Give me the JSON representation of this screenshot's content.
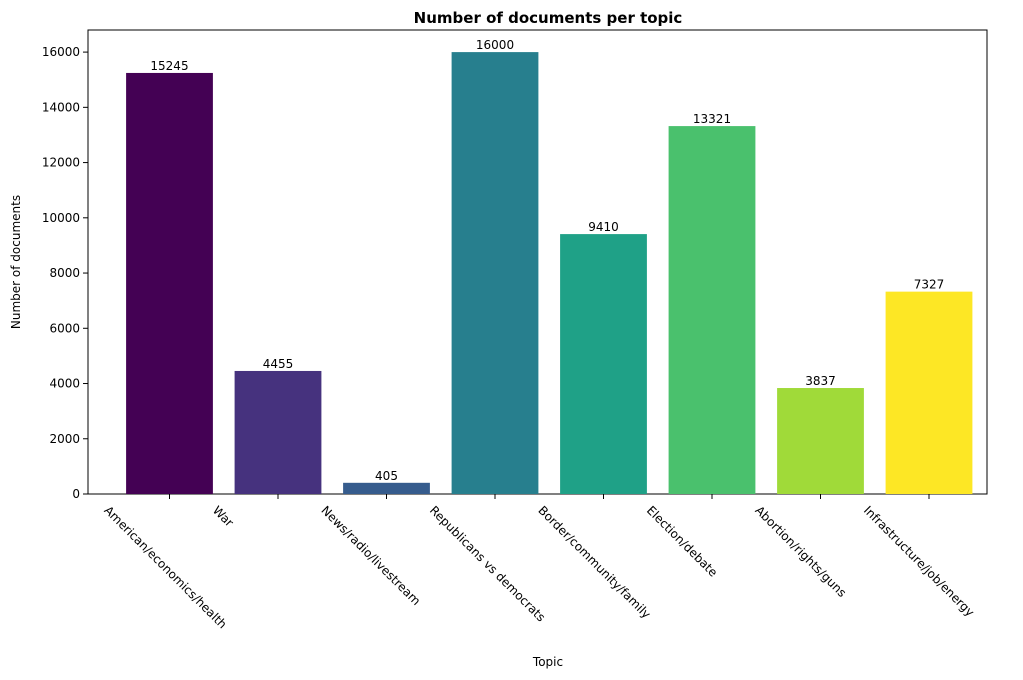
{
  "chart_data": {
    "type": "bar",
    "title": "Number of documents per topic",
    "xlabel": "Topic",
    "ylabel": "Number of documents",
    "categories": [
      "American/economics/health",
      "War",
      "News/radio/livestream",
      "Republicans vs democrats",
      "Border/community/family",
      "Election/debate",
      "Abortion/rights/guns",
      "Infrastructure/job/energy"
    ],
    "values": [
      15245,
      4455,
      405,
      16000,
      9410,
      13321,
      3837,
      7327
    ],
    "data_labels": [
      "15245",
      "4455",
      "405",
      "16000",
      "9410",
      "13321",
      "3837",
      "7327"
    ],
    "colors": [
      "#440154",
      "#46327e",
      "#365c8d",
      "#277f8e",
      "#1fa187",
      "#4ac16d",
      "#a0da39",
      "#fde725"
    ],
    "ylim": [
      0,
      16800
    ],
    "yticks": [
      0,
      2000,
      4000,
      6000,
      8000,
      10000,
      12000,
      14000,
      16000
    ],
    "ytick_labels": [
      "0",
      "2000",
      "4000",
      "6000",
      "8000",
      "10000",
      "12000",
      "14000",
      "16000"
    ],
    "x_tick_rotation": -45,
    "grid": false,
    "legend": false
  }
}
